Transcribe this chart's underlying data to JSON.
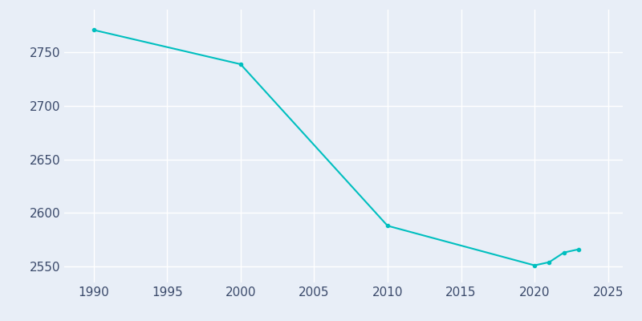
{
  "years": [
    1990,
    2000,
    2010,
    2020,
    2021,
    2022,
    2023
  ],
  "population": [
    2771,
    2739,
    2588,
    2551,
    2554,
    2563,
    2566
  ],
  "line_color": "#00BFBF",
  "marker": "o",
  "marker_size": 3,
  "line_width": 1.5,
  "bg_color": "#E8EEF7",
  "grid_color": "#FFFFFF",
  "tick_color": "#3B4A6B",
  "xlim": [
    1988,
    2026
  ],
  "ylim": [
    2535,
    2790
  ],
  "xticks": [
    1990,
    1995,
    2000,
    2005,
    2010,
    2015,
    2020,
    2025
  ],
  "yticks": [
    2550,
    2600,
    2650,
    2700,
    2750
  ],
  "tick_fontsize": 11
}
